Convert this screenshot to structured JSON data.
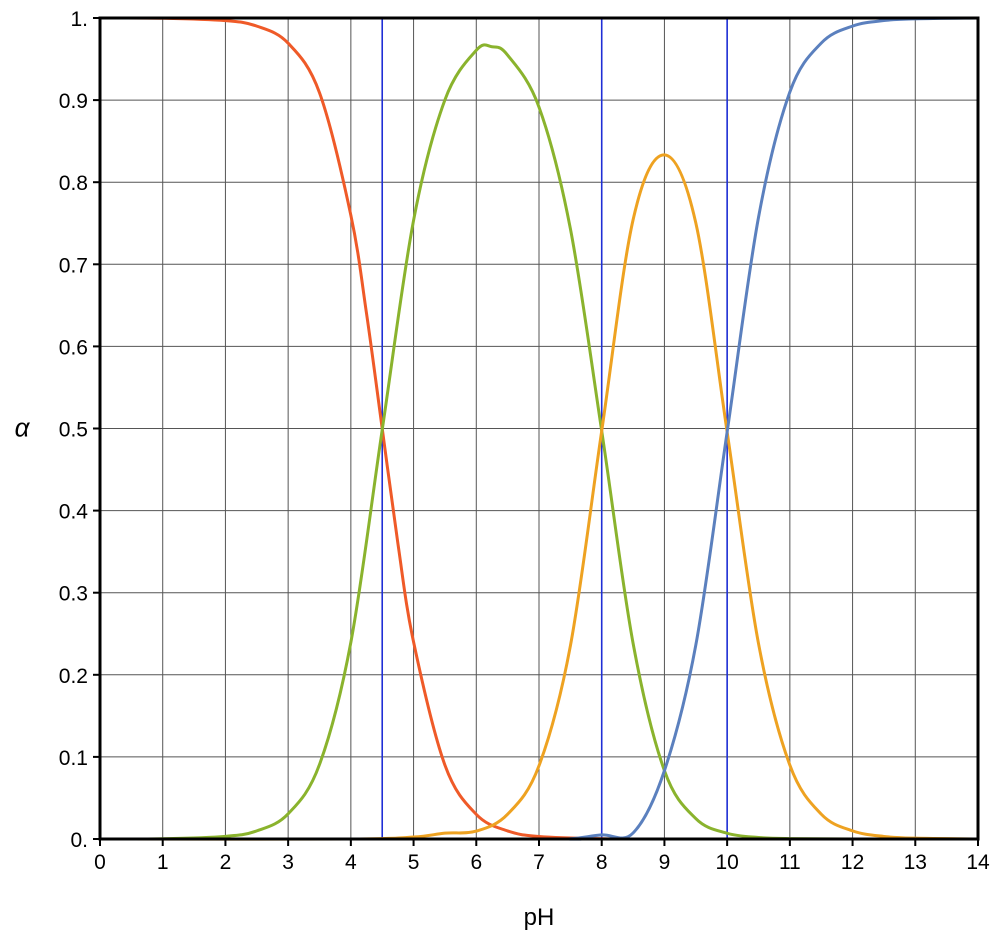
{
  "chart_data": {
    "type": "line",
    "title": "",
    "xlabel": "pH",
    "ylabel": "α",
    "xlim": [
      0,
      14
    ],
    "ylim": [
      0,
      1
    ],
    "x_ticks": [
      0,
      1,
      2,
      3,
      4,
      5,
      6,
      7,
      8,
      9,
      10,
      11,
      12,
      13,
      14
    ],
    "x_tick_labels": [
      "0",
      "1",
      "2",
      "3",
      "4",
      "5",
      "6",
      "7",
      "8",
      "9",
      "10",
      "11",
      "12",
      "13",
      "14"
    ],
    "y_ticks": [
      0,
      0.1,
      0.2,
      0.3,
      0.4,
      0.5,
      0.6,
      0.7,
      0.8,
      0.9,
      1
    ],
    "y_tick_labels": [
      "0.",
      "0.1",
      "0.2",
      "0.3",
      "0.4",
      "0.5",
      "0.6",
      "0.7",
      "0.8",
      "0.9",
      "1."
    ],
    "grid": true,
    "legend": "none",
    "pKa_lines": [
      4.5,
      8,
      10
    ],
    "pKa_line_color": "#1f2fd6",
    "grid_color": "#555555",
    "series": [
      {
        "color": "#ef5a28",
        "x": [
          0,
          1,
          2,
          2.5,
          3,
          3.5,
          4,
          4.25,
          4.5,
          4.75,
          5,
          5.5,
          6,
          6.5,
          7,
          8,
          9,
          10,
          11,
          12,
          13,
          14
        ],
        "values": [
          1.0,
          0.9997,
          0.9968,
          0.9901,
          0.9693,
          0.909,
          0.7597,
          0.64,
          0.5,
          0.36,
          0.24,
          0.09,
          0.03,
          0.0098,
          0.0031,
          0.0003,
          0.0,
          0.0,
          0.0,
          0.0,
          0.0,
          0.0
        ]
      },
      {
        "color": "#8ab32d",
        "x": [
          0,
          1,
          2,
          2.5,
          3,
          3.5,
          4,
          4.5,
          5,
          5.5,
          6,
          6.25,
          6.5,
          7,
          7.5,
          8,
          8.5,
          9,
          9.5,
          10,
          10.5,
          11,
          12,
          13,
          14
        ],
        "values": [
          0.0,
          0.0003,
          0.0032,
          0.0099,
          0.0307,
          0.0907,
          0.2396,
          0.4984,
          0.7535,
          0.9003,
          0.9607,
          0.965,
          0.9547,
          0.8915,
          0.7435,
          0.497,
          0.2385,
          0.0833,
          0.0249,
          0.007,
          0.0019,
          0.0005,
          0.0,
          0.0,
          0.0
        ]
      },
      {
        "color": "#eea221",
        "x": [
          0,
          4,
          5,
          5.5,
          6,
          6.5,
          7,
          7.5,
          8,
          8.5,
          9,
          9.5,
          10,
          10.5,
          11,
          11.5,
          12,
          12.5,
          13,
          14
        ],
        "values": [
          0.0,
          0.0,
          0.0024,
          0.0071,
          0.0096,
          0.0302,
          0.0892,
          0.2351,
          0.497,
          0.7541,
          0.8333,
          0.7505,
          0.4958,
          0.2381,
          0.09,
          0.0303,
          0.0099,
          0.0031,
          0.001,
          0.0
        ]
      },
      {
        "color": "#5b80be",
        "x": [
          0,
          7,
          7.5,
          8,
          8.5,
          9,
          9.5,
          10,
          10.5,
          11,
          11.5,
          12,
          12.5,
          13,
          14
        ],
        "values": [
          0.0,
          0.0,
          0.0003,
          0.005,
          0.0073,
          0.0833,
          0.2361,
          0.4958,
          0.7571,
          0.9099,
          0.9694,
          0.9901,
          0.9969,
          0.999,
          1.0
        ]
      }
    ]
  }
}
